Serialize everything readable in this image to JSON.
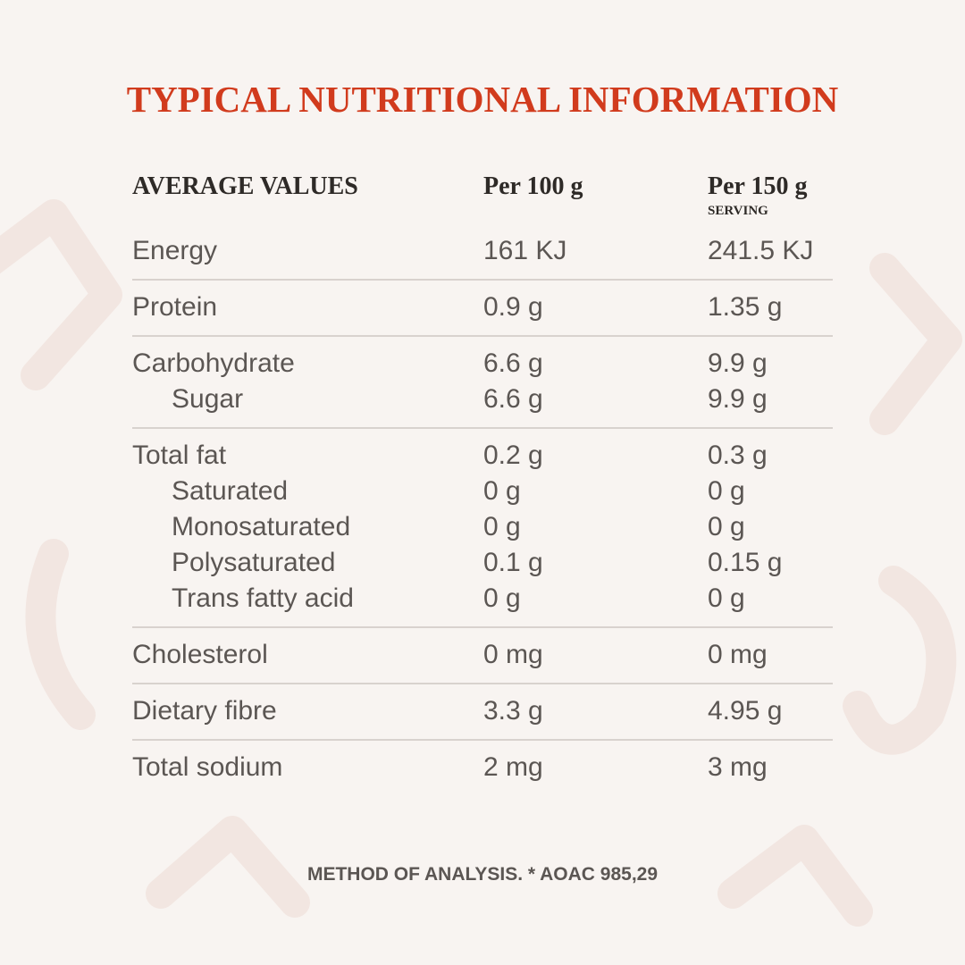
{
  "title": "TYPICAL NUTRITIONAL INFORMATION",
  "table": {
    "header": [
      "AVERAGE VALUES",
      "Per 100 g",
      "Per 150 g"
    ],
    "header_note": "SERVING",
    "groups": [
      [
        [
          "Energy",
          "161 KJ",
          "241.5 KJ"
        ]
      ],
      [
        [
          "Protein",
          "0.9 g",
          "1.35 g"
        ]
      ],
      [
        [
          "Carbohydrate",
          "6.6 g",
          "9.9 g"
        ],
        [
          "Sugar",
          "6.6 g",
          "9.9 g"
        ]
      ],
      [
        [
          "Total fat",
          "0.2 g",
          "0.3 g"
        ],
        [
          "Saturated",
          "0 g",
          "0 g"
        ],
        [
          "Monosaturated",
          "0 g",
          "0 g"
        ],
        [
          "Polysaturated",
          "0.1 g",
          "0.15 g"
        ],
        [
          "Trans fatty acid",
          "0 g",
          "0 g"
        ]
      ],
      [
        [
          "Cholesterol",
          "0 mg",
          "0 mg"
        ]
      ],
      [
        [
          "Dietary fibre",
          "3.3 g",
          "4.95 g"
        ]
      ],
      [
        [
          "Total sodium",
          "2 mg",
          "3 mg"
        ]
      ]
    ]
  },
  "footnote": "METHOD OF ANALYSIS. * AOAC 985,29"
}
